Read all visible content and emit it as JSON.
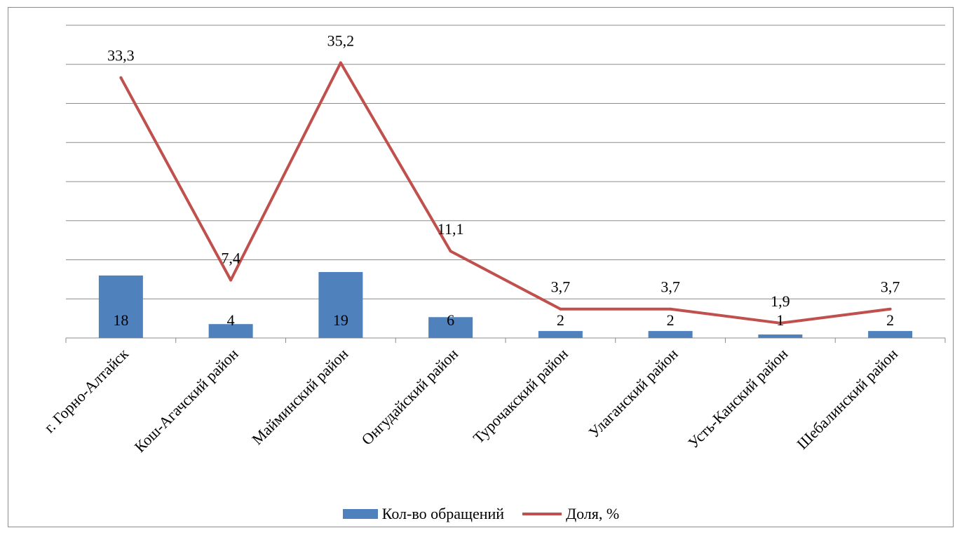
{
  "chart_data": {
    "type": "bar",
    "title": "",
    "categories": [
      "г. Горно-Алтайск",
      "Кош-Агачский район",
      "Майминский район",
      "Онгудайский район",
      "Турочакский район",
      "Улаганский район",
      "Усть-Канский район",
      "Шебалинский район"
    ],
    "series": [
      {
        "name": "Кол-во обращений",
        "type": "bar",
        "color": "#4f81bd",
        "values": [
          18,
          4,
          19,
          6,
          2,
          2,
          1,
          2
        ],
        "labels": [
          "18",
          "4",
          "19",
          "6",
          "2",
          "2",
          "1",
          "2"
        ]
      },
      {
        "name": "Доля, %",
        "type": "line",
        "color": "#c0504d",
        "values": [
          33.3,
          7.4,
          35.2,
          11.1,
          3.7,
          3.7,
          1.9,
          3.7
        ],
        "labels": [
          "33,3",
          "7,4",
          "35,2",
          "11,1",
          "3,7",
          "3,7",
          "1,9",
          "3,7"
        ]
      }
    ],
    "ylim": [
      0,
      40
    ],
    "gridlines": true,
    "legend_position": "bottom"
  }
}
